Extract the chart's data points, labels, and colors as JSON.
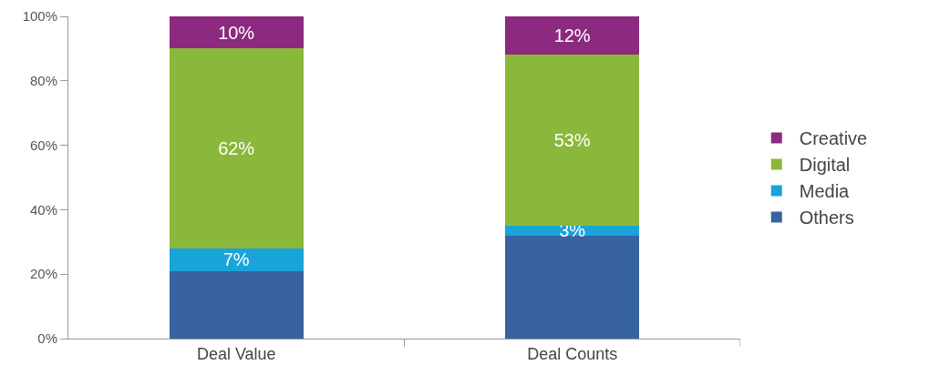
{
  "chart_data": {
    "type": "bar",
    "stacked": true,
    "categories": [
      "Deal Value",
      "Deal Counts"
    ],
    "series": [
      {
        "name": "Others",
        "color": "#3763a0",
        "values": [
          21,
          32
        ],
        "value_labels": [
          null,
          null
        ]
      },
      {
        "name": "Media",
        "color": "#1aa3d9",
        "values": [
          7,
          3
        ],
        "value_labels": [
          "7%",
          "3%"
        ]
      },
      {
        "name": "Digital",
        "color": "#8ab83a",
        "values": [
          62,
          53
        ],
        "value_labels": [
          "62%",
          "53%"
        ]
      },
      {
        "name": "Creative",
        "color": "#8b2a7e",
        "values": [
          10,
          12
        ],
        "value_labels": [
          "10%",
          "12%"
        ]
      }
    ],
    "ylim": [
      0,
      100
    ],
    "yticks": [
      {
        "value": 0,
        "label": "0%"
      },
      {
        "value": 20,
        "label": "20%"
      },
      {
        "value": 40,
        "label": "40%"
      },
      {
        "value": 60,
        "label": "60%"
      },
      {
        "value": 80,
        "label": "80%"
      },
      {
        "value": 100,
        "label": "100%"
      }
    ],
    "grid": false,
    "legend": "right"
  }
}
